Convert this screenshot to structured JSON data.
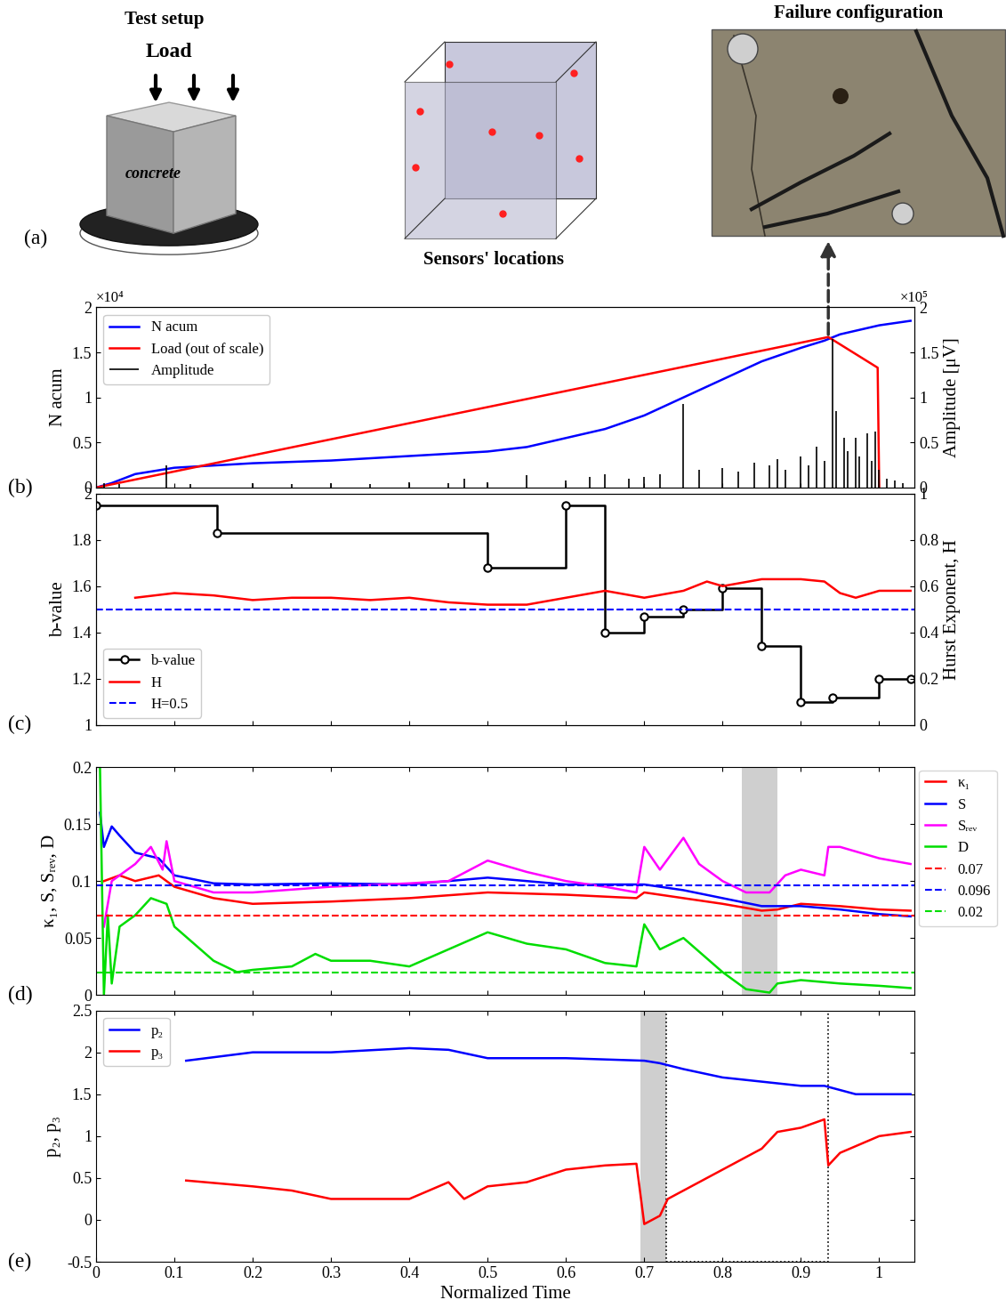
{
  "panel_a": {
    "panel_label": "(a)",
    "test_setup_title": "Test setup",
    "load_label": "Load",
    "material_label": "concrete",
    "sensors_title": "Sensors' locations",
    "failure_title": "Failure configuration"
  },
  "chart_data": [
    {
      "type": "line",
      "panel_label": "(b)",
      "y_label": "N acum",
      "y_multiplier": "×10⁴",
      "y2_label": "Amplitude [μV]",
      "y2_multiplier": "×10⁵",
      "xlim": [
        0,
        1.045
      ],
      "xticks": [
        0,
        0.1,
        0.2,
        0.3,
        0.4,
        0.5,
        0.6,
        0.7,
        0.8,
        0.9,
        1
      ],
      "ylim": [
        0,
        2
      ],
      "yticks": [
        0,
        0.5,
        1,
        1.5,
        2
      ],
      "y2lim": [
        0,
        2
      ],
      "y2ticks": [
        0,
        0.5,
        1,
        1.5,
        2
      ],
      "tick_labels": "y",
      "legend": "upper left",
      "series": [
        {
          "name": "N acum",
          "color": "#0000ff",
          "line_style": "solid",
          "x": [
            0,
            0.02,
            0.05,
            0.1,
            0.2,
            0.3,
            0.4,
            0.5,
            0.55,
            0.6,
            0.65,
            0.7,
            0.75,
            0.8,
            0.85,
            0.9,
            0.93,
            0.95,
            1.0,
            1.04
          ],
          "values": [
            0,
            0.05,
            0.15,
            0.22,
            0.27,
            0.3,
            0.35,
            0.4,
            0.45,
            0.55,
            0.65,
            0.8,
            1.0,
            1.2,
            1.4,
            1.55,
            1.63,
            1.7,
            1.8,
            1.85
          ]
        },
        {
          "name": "Load (out of scale)",
          "color": "#ff0000",
          "line_style": "solid",
          "x": [
            0,
            0.935,
            0.998,
            1.0
          ],
          "values": [
            0,
            1.67,
            1.33,
            0
          ]
        },
        {
          "name": "Amplitude",
          "type": "spike",
          "axis": "y2",
          "color": "#000000",
          "x": [
            0.0,
            0.01,
            0.03,
            0.09,
            0.12,
            0.2,
            0.25,
            0.3,
            0.35,
            0.4,
            0.45,
            0.47,
            0.5,
            0.55,
            0.6,
            0.63,
            0.65,
            0.68,
            0.7,
            0.72,
            0.75,
            0.77,
            0.8,
            0.82,
            0.84,
            0.86,
            0.87,
            0.88,
            0.9,
            0.91,
            0.92,
            0.93,
            0.94,
            0.945,
            0.955,
            0.96,
            0.97,
            0.975,
            0.985,
            0.99,
            0.995,
            1.0,
            1.01,
            1.02,
            1.03
          ],
          "values": [
            0.08,
            0.05,
            0.04,
            0.25,
            0.04,
            0.05,
            0.04,
            0.05,
            0.04,
            0.06,
            0.05,
            0.1,
            0.06,
            0.14,
            0.08,
            0.12,
            0.15,
            0.1,
            0.12,
            0.15,
            0.93,
            0.2,
            0.22,
            0.18,
            0.28,
            0.25,
            0.32,
            0.2,
            0.35,
            0.25,
            0.45,
            0.3,
            1.65,
            0.85,
            0.55,
            0.4,
            0.55,
            0.35,
            0.6,
            0.3,
            0.62,
            0.2,
            0.1,
            0.08,
            0.05
          ]
        }
      ]
    },
    {
      "type": "line",
      "panel_label": "(c)",
      "y_label": "b-value",
      "y2_label": "Hurst Exponent, H",
      "xlim": [
        0,
        1.045
      ],
      "xticks": [
        0,
        0.1,
        0.2,
        0.3,
        0.4,
        0.5,
        0.6,
        0.7,
        0.8,
        0.9,
        1
      ],
      "ylim": [
        1,
        2
      ],
      "yticks": [
        1,
        1.2,
        1.4,
        1.6,
        1.8,
        2
      ],
      "y2lim": [
        0,
        1
      ],
      "y2ticks": [
        0,
        0.2,
        0.4,
        0.6,
        0.8,
        1
      ],
      "tick_labels": "y",
      "legend": "lower left",
      "series": [
        {
          "name": "b-value",
          "type": "step",
          "color": "#000000",
          "marker": "circle",
          "line_style": "solid",
          "x": [
            0,
            0.155,
            0.5,
            0.6,
            0.65,
            0.7,
            0.75,
            0.8,
            0.85,
            0.9,
            0.94,
            1.0,
            1.04
          ],
          "values": [
            1.95,
            1.83,
            1.68,
            1.95,
            1.4,
            1.47,
            1.5,
            1.59,
            1.34,
            1.1,
            1.12,
            1.2,
            1.2
          ]
        },
        {
          "name": "H",
          "axis": "y2",
          "color": "#ff0000",
          "line_style": "solid",
          "x": [
            0.05,
            0.1,
            0.15,
            0.2,
            0.25,
            0.3,
            0.35,
            0.4,
            0.45,
            0.5,
            0.55,
            0.6,
            0.65,
            0.7,
            0.75,
            0.78,
            0.8,
            0.85,
            0.9,
            0.93,
            0.95,
            0.97,
            1.0,
            1.04
          ],
          "values": [
            0.55,
            0.57,
            0.56,
            0.54,
            0.55,
            0.55,
            0.54,
            0.55,
            0.53,
            0.52,
            0.52,
            0.55,
            0.58,
            0.55,
            0.58,
            0.62,
            0.6,
            0.63,
            0.63,
            0.62,
            0.57,
            0.55,
            0.58,
            0.58
          ]
        },
        {
          "name": "H=0.5",
          "type": "hline",
          "axis": "y2",
          "color": "#0000ff",
          "line_style": "dashed",
          "value": 0.5
        }
      ]
    },
    {
      "type": "line",
      "panel_label": "(d)",
      "y_label": "κ₁, S, Sᵣₑᵥ, D",
      "xlim": [
        0,
        1.045
      ],
      "xticks": [
        0,
        0.1,
        0.2,
        0.3,
        0.4,
        0.5,
        0.6,
        0.7,
        0.8,
        0.9,
        1
      ],
      "ylim": [
        0,
        0.2
      ],
      "yticks": [
        0,
        0.05,
        0.1,
        0.15,
        0.2
      ],
      "tick_labels": "y",
      "legend": "right",
      "highlight_x": [
        0.825,
        0.87
      ],
      "series": [
        {
          "name": "κ₁",
          "color": "#ff0000",
          "line_style": "solid",
          "x": [
            0.01,
            0.03,
            0.05,
            0.08,
            0.1,
            0.15,
            0.2,
            0.3,
            0.4,
            0.5,
            0.6,
            0.69,
            0.7,
            0.75,
            0.8,
            0.85,
            0.87,
            0.9,
            0.95,
            1.0,
            1.04
          ],
          "values": [
            0.1,
            0.105,
            0.1,
            0.105,
            0.095,
            0.085,
            0.08,
            0.082,
            0.085,
            0.09,
            0.088,
            0.085,
            0.09,
            0.085,
            0.08,
            0.074,
            0.075,
            0.08,
            0.078,
            0.075,
            0.074
          ]
        },
        {
          "name": "S",
          "color": "#0000ff",
          "line_style": "solid",
          "x": [
            0.005,
            0.01,
            0.02,
            0.03,
            0.05,
            0.08,
            0.1,
            0.15,
            0.2,
            0.3,
            0.4,
            0.5,
            0.6,
            0.7,
            0.75,
            0.8,
            0.85,
            0.87,
            0.9,
            0.95,
            1.0,
            1.04
          ],
          "values": [
            0.16,
            0.13,
            0.148,
            0.14,
            0.125,
            0.12,
            0.105,
            0.098,
            0.097,
            0.098,
            0.097,
            0.103,
            0.097,
            0.097,
            0.092,
            0.085,
            0.078,
            0.078,
            0.078,
            0.075,
            0.071,
            0.069
          ]
        },
        {
          "name": "Sᵣₑᵥ",
          "color": "#ff00ff",
          "line_style": "solid",
          "x": [
            0.01,
            0.02,
            0.05,
            0.07,
            0.085,
            0.09,
            0.1,
            0.15,
            0.2,
            0.3,
            0.4,
            0.45,
            0.5,
            0.55,
            0.6,
            0.65,
            0.69,
            0.7,
            0.72,
            0.75,
            0.77,
            0.8,
            0.83,
            0.86,
            0.88,
            0.9,
            0.93,
            0.935,
            0.95,
            1.0,
            1.04
          ],
          "values": [
            0.06,
            0.1,
            0.115,
            0.13,
            0.11,
            0.135,
            0.1,
            0.09,
            0.09,
            0.095,
            0.098,
            0.1,
            0.118,
            0.108,
            0.1,
            0.095,
            0.09,
            0.13,
            0.11,
            0.138,
            0.115,
            0.1,
            0.09,
            0.09,
            0.105,
            0.11,
            0.105,
            0.13,
            0.13,
            0.12,
            0.115
          ]
        },
        {
          "name": "D",
          "color": "#00dd00",
          "line_style": "solid",
          "x": [
            0.005,
            0.01,
            0.015,
            0.02,
            0.03,
            0.05,
            0.07,
            0.09,
            0.1,
            0.15,
            0.18,
            0.2,
            0.25,
            0.28,
            0.3,
            0.35,
            0.4,
            0.45,
            0.5,
            0.55,
            0.6,
            0.65,
            0.69,
            0.7,
            0.72,
            0.75,
            0.8,
            0.83,
            0.86,
            0.87,
            0.9,
            0.95,
            1.0,
            1.04
          ],
          "values": [
            0.2,
            0.0,
            0.07,
            0.01,
            0.06,
            0.07,
            0.085,
            0.08,
            0.06,
            0.03,
            0.02,
            0.022,
            0.025,
            0.036,
            0.03,
            0.03,
            0.025,
            0.04,
            0.055,
            0.045,
            0.04,
            0.028,
            0.025,
            0.062,
            0.04,
            0.05,
            0.02,
            0.005,
            0.002,
            0.01,
            0.013,
            0.01,
            0.008,
            0.006
          ]
        },
        {
          "name": "0.07",
          "type": "hline",
          "color": "#ff0000",
          "line_style": "dashed",
          "value": 0.07
        },
        {
          "name": "0.096",
          "type": "hline",
          "color": "#0000ff",
          "line_style": "dashed",
          "value": 0.096
        },
        {
          "name": "0.02",
          "type": "hline",
          "color": "#00dd00",
          "line_style": "dashed",
          "value": 0.02
        }
      ]
    },
    {
      "type": "line",
      "panel_label": "(e)",
      "x_label": "Normalized Time",
      "y_label": "p₂, p₃",
      "xlim": [
        0,
        1.045
      ],
      "xticks": [
        0,
        0.1,
        0.2,
        0.3,
        0.4,
        0.5,
        0.6,
        0.7,
        0.8,
        0.9,
        1
      ],
      "ylim": [
        -0.5,
        2.5
      ],
      "yticks": [
        -0.5,
        0,
        0.5,
        1,
        1.5,
        2,
        2.5
      ],
      "legend": "upper left",
      "highlight_x": [
        0.695,
        0.728
      ],
      "box_x": [
        0.728,
        0.935
      ],
      "series": [
        {
          "name": "p₂",
          "color": "#0000ff",
          "line_style": "solid",
          "x": [
            0.115,
            0.2,
            0.3,
            0.4,
            0.45,
            0.5,
            0.6,
            0.7,
            0.72,
            0.75,
            0.8,
            0.85,
            0.9,
            0.93,
            0.95,
            0.97,
            1.04
          ],
          "values": [
            1.9,
            2.0,
            2.0,
            2.05,
            2.03,
            1.93,
            1.93,
            1.9,
            1.87,
            1.8,
            1.7,
            1.65,
            1.6,
            1.6,
            1.55,
            1.5,
            1.5
          ]
        },
        {
          "name": "p₃",
          "color": "#ff0000",
          "line_style": "solid",
          "x": [
            0.115,
            0.2,
            0.25,
            0.3,
            0.4,
            0.45,
            0.47,
            0.5,
            0.55,
            0.6,
            0.65,
            0.69,
            0.7,
            0.72,
            0.73,
            0.75,
            0.8,
            0.85,
            0.87,
            0.9,
            0.93,
            0.935,
            0.95,
            1.0,
            1.04
          ],
          "values": [
            0.47,
            0.4,
            0.35,
            0.25,
            0.25,
            0.45,
            0.25,
            0.4,
            0.45,
            0.6,
            0.65,
            0.67,
            -0.05,
            0.05,
            0.25,
            0.35,
            0.6,
            0.85,
            1.05,
            1.1,
            1.2,
            0.65,
            0.8,
            1.0,
            1.05
          ]
        }
      ]
    }
  ]
}
